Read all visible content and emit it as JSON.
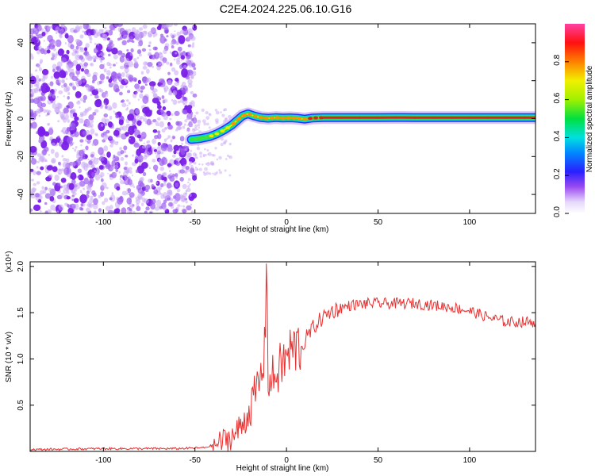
{
  "title": "C2E4.2024.225.06.10.G16",
  "colors": {
    "snr_line": "#e83030",
    "noise_purple": "#7a20e8",
    "noise_light": "#c9a8f5",
    "ridge_core": "#e02020"
  },
  "chart_data": [
    {
      "type": "heatmap",
      "name": "spectrogram",
      "title": "",
      "xlabel": "Height of straight line (km)",
      "ylabel": "Frequency (Hz)",
      "xlim": [
        -140,
        136
      ],
      "ylim": [
        -50,
        50
      ],
      "xticks": [
        -100,
        -50,
        0,
        50,
        100
      ],
      "yticks": [
        -40,
        -20,
        0,
        20,
        40
      ],
      "colorbar": {
        "label": "Normalized spectral amplitude",
        "range": [
          0,
          1
        ],
        "ticks": [
          0.0,
          0.2,
          0.4,
          0.6,
          0.8
        ],
        "tick_labels": [
          "0.0",
          "0.2",
          "0.4",
          "0.6",
          "0.8"
        ],
        "colormap": "rainbow (white-violet-blue-cyan-green-yellow-red-magenta)"
      },
      "noise_region_x": [
        -140,
        -50
      ],
      "ridge": {
        "x": [
          -52,
          -47,
          -42,
          -38,
          -34,
          -30,
          -27,
          -24,
          -21,
          -18,
          -14,
          -10,
          -6,
          -2,
          2,
          6,
          10,
          14,
          20,
          30,
          40,
          50,
          60,
          70,
          80,
          90,
          100,
          110,
          120,
          130,
          136
        ],
        "freq": [
          -11,
          -10.5,
          -9.5,
          -8,
          -6,
          -3.5,
          -1,
          1.5,
          2.5,
          1.5,
          0.5,
          0.2,
          0.5,
          0.3,
          0.4,
          0.2,
          -0.3,
          0.3,
          0.5,
          0.5,
          0.5,
          0.5,
          0.6,
          0.5,
          0.5,
          0.5,
          0.5,
          0.5,
          0.5,
          0.5,
          0.5
        ],
        "amplitude": [
          0.3,
          0.35,
          0.45,
          0.5,
          0.55,
          0.6,
          0.7,
          0.75,
          0.7,
          0.65,
          0.7,
          0.75,
          0.7,
          0.72,
          0.75,
          0.72,
          0.7,
          0.8,
          0.85,
          0.9,
          0.9,
          0.92,
          0.92,
          0.95,
          0.95,
          0.95,
          0.93,
          0.93,
          0.93,
          0.93,
          0.93
        ]
      }
    },
    {
      "type": "line",
      "name": "snr",
      "title": "",
      "xlabel": "Height of straight line (km)",
      "ylabel": "SNR (10 * v/v)",
      "y_multiplier_label": "(x10⁴)",
      "xlim": [
        -140,
        136
      ],
      "ylim": [
        0,
        2.05
      ],
      "xticks": [
        -100,
        -50,
        0,
        50,
        100
      ],
      "yticks": [
        0.5,
        1.0,
        1.5,
        2.0
      ],
      "ytick_labels": [
        "0.5",
        "1.0",
        "1.5",
        "2.0"
      ],
      "series": [
        {
          "x": [
            -140,
            -100,
            -60,
            -45,
            -38,
            -32,
            -28,
            -24,
            -20,
            -17,
            -14,
            -12,
            -11,
            -10,
            -9,
            -8,
            -6,
            -3,
            0,
            3,
            6,
            10,
            15,
            20,
            25,
            30,
            35,
            45,
            60,
            70,
            80,
            90,
            100,
            110,
            120,
            130,
            136
          ],
          "values": [
            0.02,
            0.03,
            0.03,
            0.04,
            0.08,
            0.14,
            0.18,
            0.3,
            0.45,
            0.62,
            0.8,
            1.05,
            2.03,
            0.85,
            0.72,
            0.78,
            0.82,
            0.92,
            1.0,
            1.1,
            1.12,
            1.2,
            1.35,
            1.45,
            1.52,
            1.55,
            1.58,
            1.6,
            1.6,
            1.6,
            1.58,
            1.56,
            1.52,
            1.45,
            1.4,
            1.4,
            1.4
          ]
        }
      ]
    }
  ]
}
